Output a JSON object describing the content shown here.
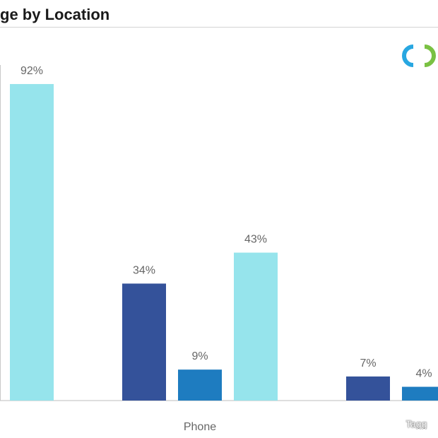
{
  "title": "ge by Location",
  "watermark": "Tagg",
  "colors": {
    "dark": "#34529a",
    "mid": "#1e7cc0",
    "light": "#96e4ec"
  },
  "logo": "ring-logo-icon",
  "chart_data": {
    "type": "bar",
    "categories": [
      "",
      "Phone",
      ""
    ],
    "series": [
      {
        "color": "#34529a",
        "values": [
          null,
          34,
          7
        ]
      },
      {
        "color": "#1e7cc0",
        "values": [
          null,
          9,
          4
        ]
      },
      {
        "color": "#96e4ec",
        "values": [
          92,
          43,
          null
        ]
      }
    ],
    "value_labels": [
      [
        null,
        "34%",
        "7%"
      ],
      [
        null,
        "9%",
        "4%"
      ],
      [
        "92%",
        "43%",
        null
      ]
    ],
    "ylim": [
      0,
      100
    ],
    "grid": false,
    "legend": "none"
  }
}
